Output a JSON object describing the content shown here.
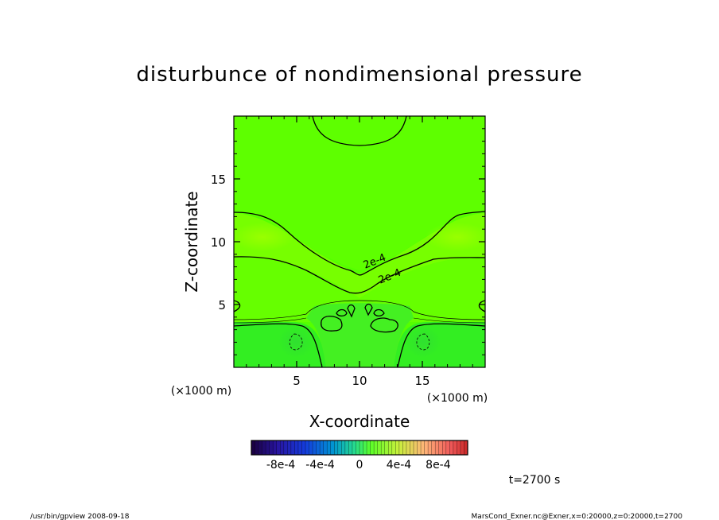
{
  "chart_data": {
    "type": "contour",
    "title": "disturbunce of nondimensional pressure",
    "xlabel": "X-coordinate",
    "ylabel": "Z-coordinate",
    "x_unit": "(×1000 m)",
    "y_unit": "(×1000 m)",
    "xlim": [
      0,
      20
    ],
    "ylim": [
      0,
      20
    ],
    "xticks": [
      5,
      10,
      15
    ],
    "yticks": [
      5,
      10,
      15
    ],
    "contour_labels": [
      {
        "text": "2e-4",
        "x": 11.3,
        "z": 8.2
      },
      {
        "text": "2e-4",
        "x": 12.5,
        "z": 7.0
      }
    ],
    "colorbar": {
      "tick_labels": [
        "-8e-4",
        "-4e-4",
        "0",
        "4e-4",
        "8e-4"
      ],
      "tick_values": [
        -0.0008,
        -0.0004,
        0,
        0.0004,
        0.0008
      ],
      "range": [
        -0.0011,
        0.0011
      ]
    },
    "time_label": "t=2700 s",
    "colors": {
      "field_base": "#55ff00",
      "field_low": "#33ee22",
      "field_high": "#88ff00",
      "contour": "#000000"
    }
  },
  "footer": {
    "left": "/usr/bin/gpview   2008-09-18",
    "right": "MarsCond_Exner.nc@Exner,x=0:20000,z=0:20000,t=2700"
  }
}
